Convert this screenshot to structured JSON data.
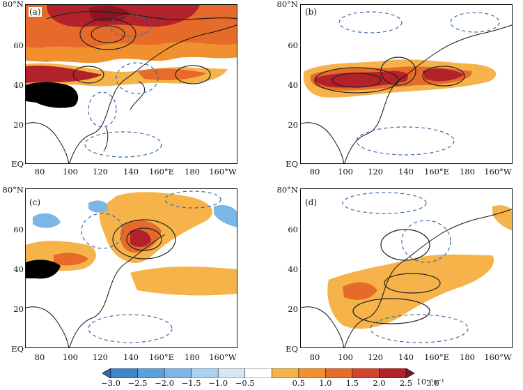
{
  "panels": [
    {
      "label": "(a)",
      "y_labels": [
        "80°N",
        "60",
        "40",
        "20",
        "EQ"
      ],
      "x_labels": [
        "80",
        "100",
        "120",
        "140",
        "160°E",
        "180",
        "160°W"
      ]
    },
    {
      "label": "(b)",
      "y_labels": [
        "80°N",
        "60",
        "40",
        "20",
        "EQ"
      ],
      "x_labels": [
        "80",
        "100",
        "120",
        "140",
        "160°E",
        "180",
        "160°W"
      ]
    },
    {
      "label": "(c)",
      "y_labels": [
        "80°N",
        "60",
        "40",
        "20",
        "EQ"
      ],
      "x_labels": [
        "80",
        "100",
        "120",
        "140",
        "160°E",
        "180",
        "160°W"
      ]
    },
    {
      "label": "(d)",
      "y_labels": [
        "80°N",
        "60",
        "40",
        "20",
        "EQ"
      ],
      "x_labels": [
        "80",
        "100",
        "120",
        "140",
        "160°E",
        "180",
        "160°W"
      ]
    }
  ],
  "colorbar": {
    "ticks": [
      "−3.0",
      "−2.5",
      "−2.0",
      "−1.5",
      "−1.0",
      "−0.5",
      "0.5",
      "1.0",
      "1.5",
      "2.0",
      "2.5",
      "3.0"
    ],
    "unit": "10⁻⁵s⁻¹",
    "colors": [
      "#2f6fb8",
      "#3f86c9",
      "#5c9fd9",
      "#7cb6e6",
      "#a9d1f1",
      "#d4e8f7",
      "#ffffff",
      "#f5b34a",
      "#f0902e",
      "#e66a2a",
      "#d2442a",
      "#b3212a",
      "#8f1320"
    ]
  },
  "colors": {
    "land_outline": "#111111",
    "dashed_contour": "#3a6aa8",
    "solid_contour": "#222222",
    "plateau_mask": "#000000"
  }
}
